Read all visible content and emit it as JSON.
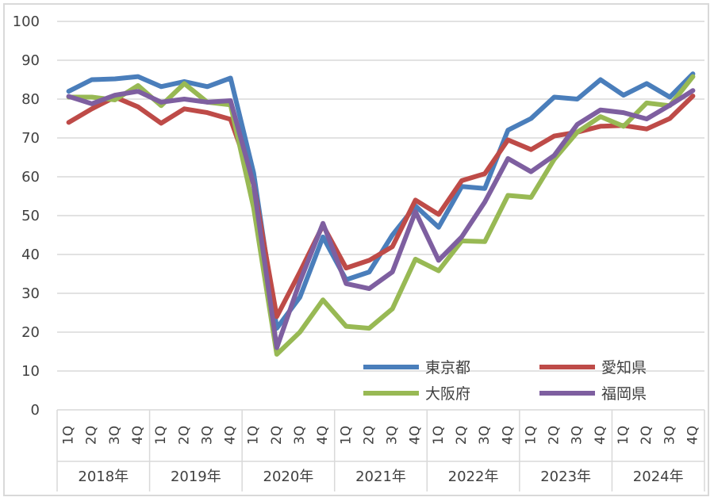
{
  "chart_data": {
    "type": "line",
    "title": "",
    "xlabel": "",
    "ylabel": "",
    "ylim": [
      0,
      100
    ],
    "yticks": [
      0,
      10,
      20,
      30,
      40,
      50,
      60,
      70,
      80,
      90,
      100
    ],
    "grid": true,
    "legend_position": "bottom-right",
    "years": [
      "2018年",
      "2019年",
      "2020年",
      "2021年",
      "2022年",
      "2023年",
      "2024年"
    ],
    "quarters": [
      "1Q",
      "2Q",
      "3Q",
      "4Q"
    ],
    "categories": [
      "2018年 1Q",
      "2018年 2Q",
      "2018年 3Q",
      "2018年 4Q",
      "2019年 1Q",
      "2019年 2Q",
      "2019年 3Q",
      "2019年 4Q",
      "2020年 1Q",
      "2020年 2Q",
      "2020年 3Q",
      "2020年 4Q",
      "2021年 1Q",
      "2021年 2Q",
      "2021年 3Q",
      "2021年 4Q",
      "2022年 1Q",
      "2022年 2Q",
      "2022年 3Q",
      "2022年 4Q",
      "2023年 1Q",
      "2023年 2Q",
      "2023年 3Q",
      "2023年 4Q",
      "2024年 1Q",
      "2024年 2Q",
      "2024年 3Q",
      "2024年 4Q"
    ],
    "series": [
      {
        "name": "東京都",
        "color": "#4a7ebb",
        "values": [
          82,
          85,
          85.2,
          85.8,
          83.2,
          84.5,
          83.2,
          85.4,
          61,
          21,
          29,
          44.5,
          33.5,
          35.5,
          45,
          52.5,
          47,
          57.5,
          57,
          72,
          75,
          80.5,
          80,
          85,
          81,
          84,
          80.5,
          86.5
        ]
      },
      {
        "name": "愛知県",
        "color": "#be4b48",
        "values": [
          74,
          77.5,
          80.5,
          78,
          73.8,
          77.5,
          76.5,
          74.8,
          58,
          24,
          35.5,
          47.5,
          36.5,
          38.5,
          42,
          54,
          50.3,
          59,
          60.8,
          69.5,
          67,
          70.5,
          71.5,
          73,
          73.2,
          72.3,
          75,
          80.8
        ]
      },
      {
        "name": "大阪府",
        "color": "#98b954",
        "values": [
          80.5,
          80.5,
          79.8,
          83.5,
          78.3,
          84,
          79.2,
          78.5,
          52,
          14.3,
          20,
          28.3,
          21.5,
          21,
          26,
          38.8,
          35.8,
          43.5,
          43.3,
          55.2,
          54.7,
          64.5,
          71.5,
          75.5,
          73,
          79,
          78.3,
          85.8
        ]
      },
      {
        "name": "福岡県",
        "color": "#7e5fa0",
        "values": [
          80.7,
          78.8,
          81,
          82,
          79.2,
          80,
          79.2,
          79.6,
          58,
          16,
          33,
          48,
          32.5,
          31.2,
          35.5,
          51,
          38.5,
          44.5,
          53.5,
          64.7,
          61.3,
          65.5,
          73.5,
          77.2,
          76.5,
          74.9,
          78.4,
          82.2
        ]
      }
    ]
  }
}
